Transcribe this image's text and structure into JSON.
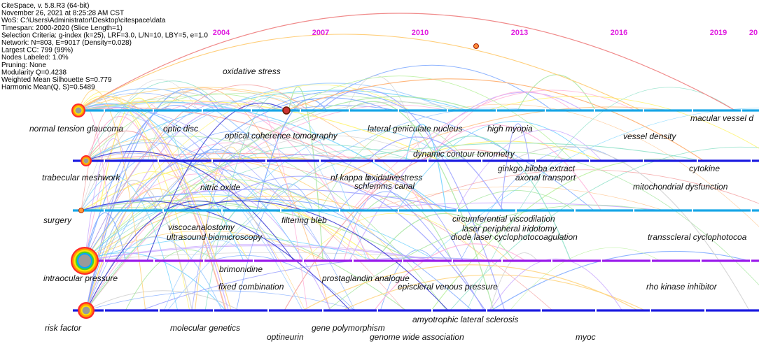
{
  "info": {
    "lines": [
      "CiteSpace, v. 5.8.R3 (64-bit)",
      "November 26, 2021 at 8:25:28 AM CST",
      "WoS: C:\\Users\\Administrator\\Desktop\\citespace\\data",
      "Timespan: 2000-2020 (Slice Length=1)",
      "Selection Criteria: g-index (k=25), LRF=3.0, L/N=10, LBY=5, e=1.0",
      "Network: N=803, E=9017 (Density=0.028)",
      "Largest CC: 799 (99%)",
      "Nodes Labeled: 1.0%",
      "Pruning: None",
      "Modularity Q=0.4238",
      "Weighted Mean Silhouette S=0.779",
      "Harmonic Mean(Q, S)=0.5489"
    ]
  },
  "years": [
    "2004",
    "2007",
    "2010",
    "2013",
    "2016",
    "2019",
    "20"
  ],
  "colors": {
    "year_label": "#e020e0",
    "timeline_light": "#19a6e6",
    "timeline_dark": "#1a1ae0",
    "timeline_purple": "#9a1aeb"
  },
  "timelines": [
    {
      "color": "#19a6e6"
    },
    {
      "color": "#1a1ae0"
    },
    {
      "color": "#19a6e6"
    },
    {
      "color": "#9a1aeb"
    },
    {
      "color": "#1a1ae0"
    }
  ],
  "keywords": [
    {
      "text": "oxidative stress"
    },
    {
      "text": "normal tension glaucoma"
    },
    {
      "text": "optic disc"
    },
    {
      "text": "optical coherence tomography"
    },
    {
      "text": "lateral geniculate nucleus"
    },
    {
      "text": "high myopia"
    },
    {
      "text": "vessel density"
    },
    {
      "text": "macular vessel d"
    },
    {
      "text": "dynamic contour tonometry"
    },
    {
      "text": "ginkgo biloba extract"
    },
    {
      "text": "axonal transport"
    },
    {
      "text": "cytokine"
    },
    {
      "text": "trabecular meshwork"
    },
    {
      "text": "nitric oxide"
    },
    {
      "text": "nf kappa b"
    },
    {
      "text": "oxidativestress"
    },
    {
      "text": "schlemms canal"
    },
    {
      "text": "mitochondrial dysfunction"
    },
    {
      "text": "surgery"
    },
    {
      "text": "filtering bleb"
    },
    {
      "text": "circumferential viscodilation"
    },
    {
      "text": "viscocanalostomy"
    },
    {
      "text": "laser peripheral iridotomy"
    },
    {
      "text": "ultrasound biomicroscopy"
    },
    {
      "text": "diode laser cyclophotocoagulation"
    },
    {
      "text": "transscleral cyclophotocoa"
    },
    {
      "text": "intraocular pressure"
    },
    {
      "text": "brimonidine"
    },
    {
      "text": "prostaglandin analogue"
    },
    {
      "text": "fixed combination"
    },
    {
      "text": "episcleral venous pressure"
    },
    {
      "text": "rho kinase inhibitor"
    },
    {
      "text": "risk factor"
    },
    {
      "text": "molecular genetics"
    },
    {
      "text": "amyotrophic lateral sclerosis"
    },
    {
      "text": "gene polymorphism"
    },
    {
      "text": "optineurin"
    },
    {
      "text": "genome wide association"
    },
    {
      "text": "myoc"
    }
  ]
}
